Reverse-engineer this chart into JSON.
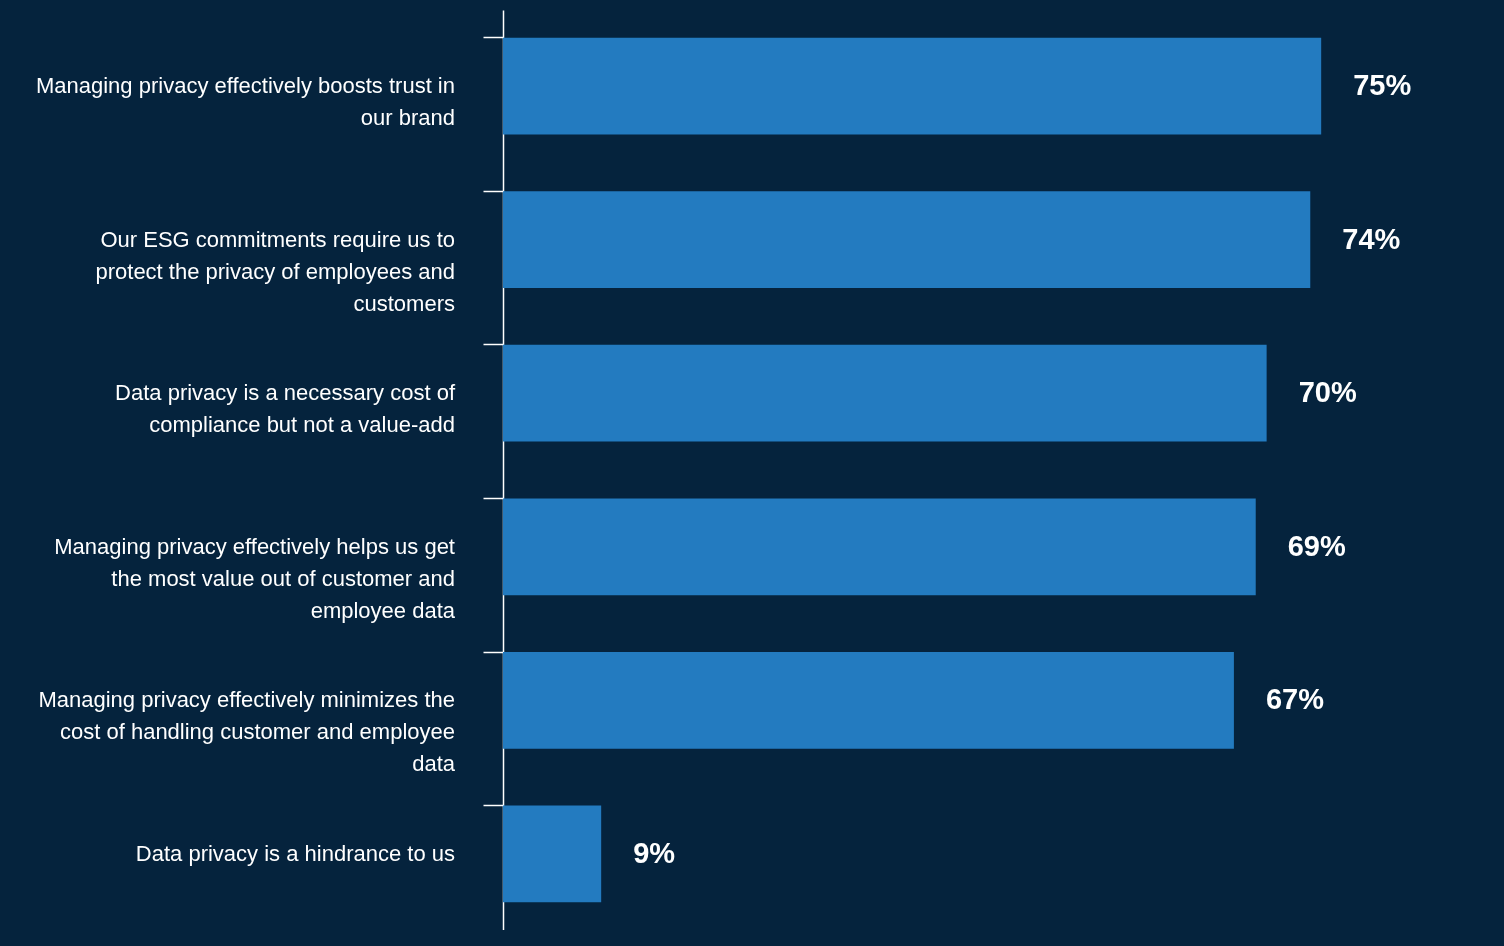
{
  "chart_data": {
    "type": "bar",
    "orientation": "horizontal",
    "categories": [
      "Managing privacy effectively boosts trust in our brand",
      "Our ESG commitments require us to protect the privacy of employees and customers",
      "Data privacy is a necessary cost of compliance but not a value-add",
      "Managing privacy effectively helps us get the most value out of customer and employee data",
      "Managing privacy effectively minimizes the cost of handling customer and employee data",
      "Data privacy is a hindrance to us"
    ],
    "values": [
      75,
      74,
      70,
      69,
      67,
      9
    ],
    "value_labels": [
      "75%",
      "74%",
      "70%",
      "69%",
      "67%",
      "9%"
    ],
    "color": "#237bc0"
  }
}
